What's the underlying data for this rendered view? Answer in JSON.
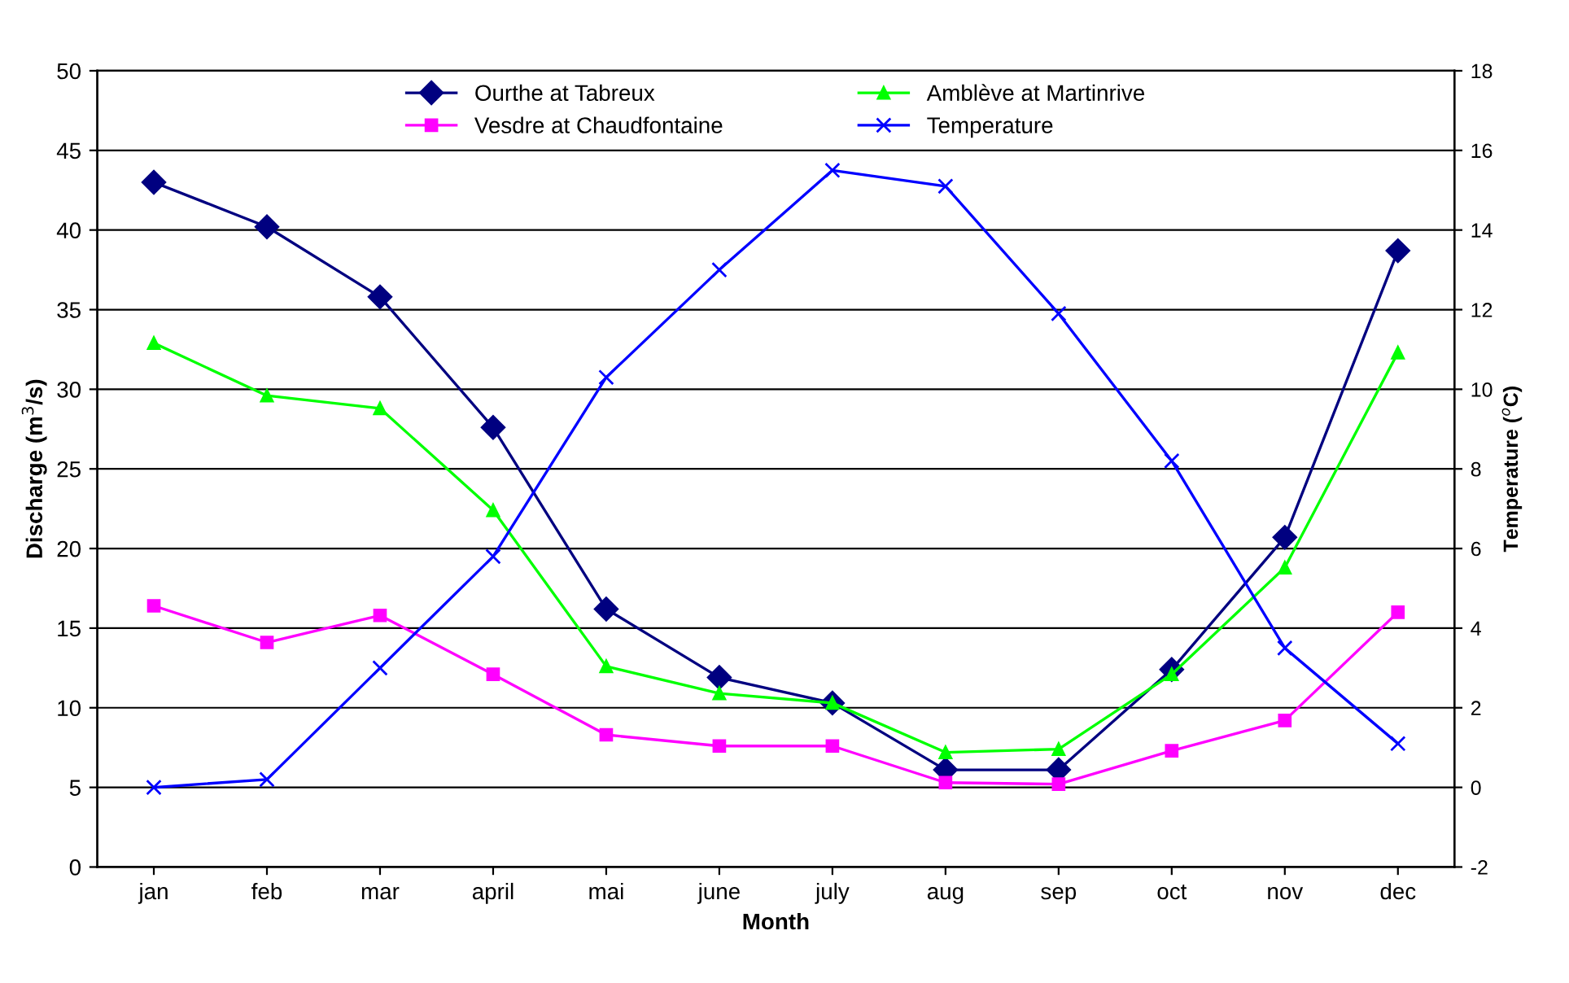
{
  "chart_data": {
    "type": "line",
    "xlabel": "Month",
    "ylabel": "Discharge (m$^{3}$/s)",
    "y2label": "Temperature ($^{o}$C)",
    "categories": [
      "jan",
      "feb",
      "mar",
      "april",
      "mai",
      "june",
      "july",
      "aug",
      "sep",
      "oct",
      "nov",
      "dec"
    ],
    "ylim": [
      0,
      50
    ],
    "yticks": [
      0,
      5,
      10,
      15,
      20,
      25,
      30,
      35,
      40,
      45,
      50
    ],
    "y2lim": [
      -2,
      18
    ],
    "y2ticks": [
      -2,
      0,
      2,
      4,
      6,
      8,
      10,
      12,
      14,
      16,
      18
    ],
    "grid": "y",
    "legend": "top",
    "series": [
      {
        "name": "Ourthe at Tabreux",
        "color": "#000080",
        "marker": "diamond",
        "values": [
          43.0,
          40.2,
          35.8,
          27.6,
          16.2,
          11.9,
          10.3,
          6.1,
          6.1,
          12.4,
          20.7,
          38.7
        ]
      },
      {
        "name": "Amblève at Martinrive",
        "color": "#00ff00",
        "marker": "triangle",
        "values": [
          32.9,
          29.6,
          28.8,
          22.4,
          12.6,
          10.9,
          10.3,
          7.2,
          7.4,
          12.1,
          18.8,
          32.3
        ]
      },
      {
        "name": "Vesdre at Chaudfontaine",
        "color": "#ff00ff",
        "marker": "square",
        "values": [
          16.4,
          14.1,
          15.8,
          12.1,
          8.3,
          7.6,
          7.6,
          5.3,
          5.2,
          7.3,
          9.2,
          16.0
        ]
      },
      {
        "name": "Temperature",
        "color": "#0000ff",
        "marker": "cross",
        "axis": "y2",
        "values": [
          0.0,
          0.2,
          3.0,
          5.8,
          10.3,
          13.0,
          15.5,
          15.1,
          11.9,
          8.2,
          3.5,
          1.1
        ]
      }
    ]
  }
}
